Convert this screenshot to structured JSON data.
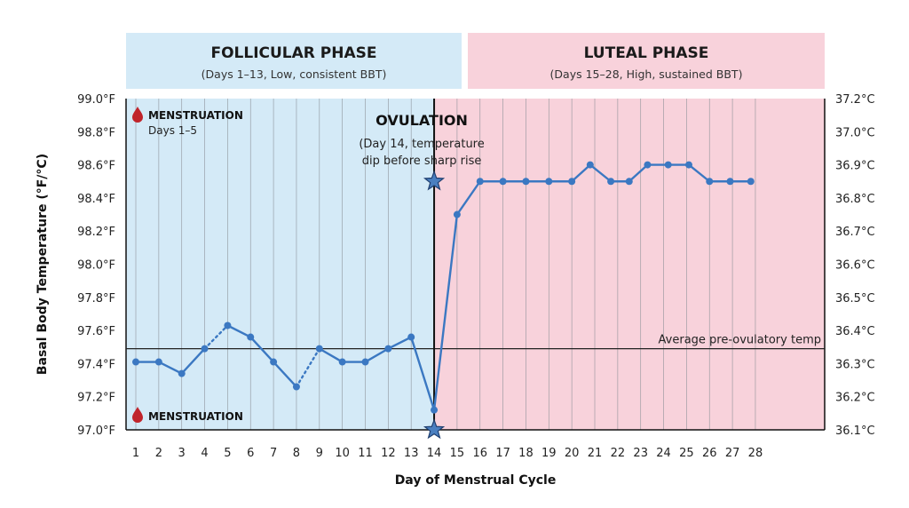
{
  "phases": {
    "follicular": {
      "title": "FOLLICULAR PHASE",
      "subtitle": "(Days 1–13, Low, consistent BBT)",
      "color": "#d4eaf7"
    },
    "luteal": {
      "title": "LUTEAL PHASE",
      "subtitle": "(Days 15–28, High, sustained BBT)",
      "color": "#f8d2db"
    }
  },
  "annotations": {
    "menstruation_top": "MENSTRUATION",
    "menstruation_top_sub": "Days 1–5",
    "menstruation_bottom": "MENSTRUATION",
    "ovulation_title": "OVULATION",
    "ovulation_line1": "(Day 14, temperature",
    "ovulation_line2": "dip before sharp rise",
    "average_label": "Average pre-ovulatory temp"
  },
  "colors": {
    "line": "#3b78c2",
    "menstruation": "#c0242b",
    "star": "#4a7fc0"
  },
  "chart_data": {
    "type": "line",
    "title": "",
    "xlabel": "Day of Menstrual Cycle",
    "ylabel": "Basal Body Temperature (°F/°C)",
    "xlim": [
      1,
      28
    ],
    "ylim": [
      97.0,
      99.0
    ],
    "x_ticks": [
      "1",
      "2",
      "3",
      "4",
      "5",
      "6",
      "7",
      "8",
      "9",
      "10",
      "11",
      "12",
      "13",
      "14",
      "15",
      "16",
      "17",
      "18",
      "19",
      "20",
      "21",
      "22",
      "23",
      "24",
      "25",
      "26",
      "27",
      "28"
    ],
    "y_ticks_left": [
      "97.0°F",
      "97.2°F",
      "97.4°F",
      "97.6°F",
      "97.8°F",
      "98.0°F",
      "98.2°F",
      "98.4°F",
      "98.6°F",
      "98.8°F",
      "99.0°F"
    ],
    "y_ticks_right": [
      "36.1°C",
      "36.2°C",
      "36.3°C",
      "36.4°C",
      "36.5°C",
      "36.6°C",
      "36.7°C",
      "36.8°C",
      "36.9°C",
      "37.0°C",
      "37.2°C"
    ],
    "grid": "vertical",
    "average_pre_ovulatory_temp": 97.49,
    "series": [
      {
        "values": [
          {
            "x": 1,
            "y": 97.41
          },
          {
            "x": 2,
            "y": 97.41
          },
          {
            "x": 3,
            "y": 97.34
          },
          {
            "x": 4,
            "y": 97.49
          },
          {
            "x": 5,
            "y": 97.63
          },
          {
            "x": 6,
            "y": 97.56
          },
          {
            "x": 7,
            "y": 97.41
          },
          {
            "x": 8,
            "y": 97.26
          },
          {
            "x": 9,
            "y": 97.49
          },
          {
            "x": 10,
            "y": 97.41
          },
          {
            "x": 11,
            "y": 97.41
          },
          {
            "x": 12,
            "y": 97.49
          },
          {
            "x": 13,
            "y": 97.56
          },
          {
            "x": 14,
            "y": 97.12
          },
          {
            "x": 15,
            "y": 98.3
          },
          {
            "x": 16,
            "y": 98.5
          },
          {
            "x": 17,
            "y": 98.5
          },
          {
            "x": 18,
            "y": 98.5
          },
          {
            "x": 19,
            "y": 98.5
          },
          {
            "x": 20,
            "y": 98.5
          },
          {
            "x": 20.8,
            "y": 98.6
          },
          {
            "x": 21.7,
            "y": 98.5
          },
          {
            "x": 22.5,
            "y": 98.5
          },
          {
            "x": 23.3,
            "y": 98.6
          },
          {
            "x": 24.2,
            "y": 98.6
          },
          {
            "x": 25.1,
            "y": 98.6
          },
          {
            "x": 26,
            "y": 98.5
          },
          {
            "x": 26.9,
            "y": 98.5
          },
          {
            "x": 27.8,
            "y": 98.5
          }
        ],
        "dotted_segments": [
          [
            4,
            5
          ],
          [
            8,
            9
          ],
          [
            25,
            26
          ],
          [
            26,
            27
          ]
        ]
      }
    ],
    "markers": [
      {
        "type": "star",
        "x": 14,
        "y": 98.5
      },
      {
        "type": "star",
        "x": 14,
        "y": 97.0
      }
    ],
    "ovulation_day": 14
  }
}
